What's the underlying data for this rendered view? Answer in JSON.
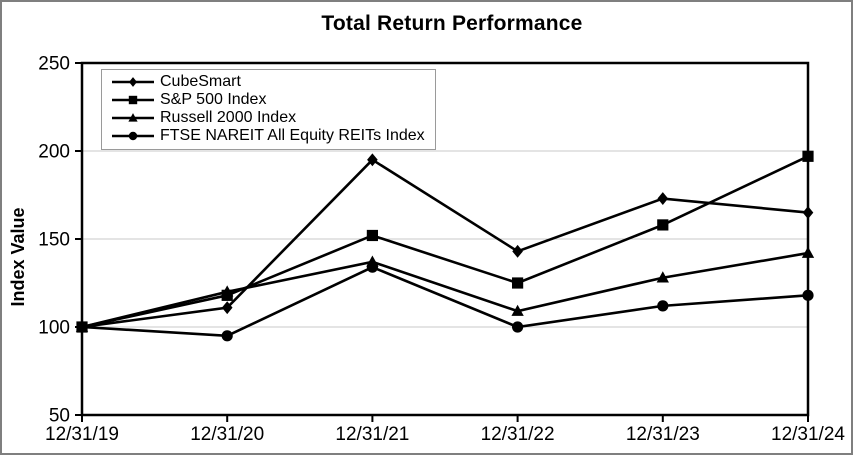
{
  "window": {
    "background": "#ffffff",
    "border_color": "#7f7f7f"
  },
  "chart_data": {
    "type": "line",
    "title": "Total Return Performance",
    "xlabel": "",
    "ylabel": "Index Value",
    "categories": [
      "12/31/19",
      "12/31/20",
      "12/31/21",
      "12/31/22",
      "12/31/23",
      "12/31/24"
    ],
    "series": [
      {
        "name": "CubeSmart",
        "marker": "diamond",
        "values": [
          100,
          111,
          195,
          143,
          173,
          165
        ]
      },
      {
        "name": "S&P 500 Index",
        "marker": "square",
        "values": [
          100,
          118,
          152,
          125,
          158,
          197
        ]
      },
      {
        "name": "Russell 2000 Index",
        "marker": "triangle",
        "values": [
          100,
          120,
          137,
          109,
          128,
          142
        ]
      },
      {
        "name": "FTSE NAREIT All Equity REITs Index",
        "marker": "circle",
        "values": [
          100,
          95,
          134,
          100,
          112,
          118
        ]
      }
    ],
    "ylim": [
      50,
      250
    ],
    "yticks": [
      50,
      100,
      150,
      200,
      250
    ],
    "gridline_values": [
      100,
      150,
      200
    ],
    "grid": true,
    "legend_position": "top-left",
    "colors": {
      "series": "#000000",
      "grid": "#c9c9c9",
      "axis": "#000000",
      "legend_border": "#9a9a9a"
    }
  }
}
